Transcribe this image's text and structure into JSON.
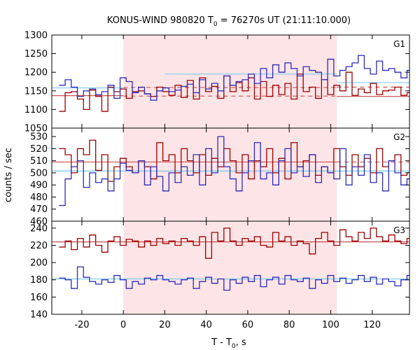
{
  "figure": {
    "title_main": "KONUS-WIND 980820 T",
    "title_sub": "0",
    "title_rest": " = 76270s UT (21:11:10.000)",
    "xlabel_main": "T - T",
    "xlabel_sub": "0",
    "xlabel_rest": ", s",
    "ylabel": "counts / sec"
  },
  "colors": {
    "red_series": "#9b0000",
    "blue_series": "#2b2bb8",
    "highlight": "#fde4e6",
    "red_fit": "#c04040",
    "blue_fit": "#69c2ee",
    "g1_blue_fit": "#7fc9f3",
    "axis": "#000000"
  },
  "chart_data": [
    {
      "type": "line",
      "panel": "G1",
      "step_width": 2.944,
      "xlim": [
        -34.5,
        138.0
      ],
      "ylim": [
        1050,
        1300
      ],
      "y_ticks": [
        1050,
        1100,
        1150,
        1200,
        1250,
        1300
      ],
      "x_ticks": [
        -20,
        0,
        20,
        40,
        60,
        80,
        100,
        120
      ],
      "highlight_interval": [
        0,
        103
      ],
      "series": [
        {
          "color_key": "red_series",
          "x_start": -31.0,
          "values": [
            1095,
            1145,
            1148,
            1128,
            1100,
            1152,
            1135,
            1095,
            1160,
            1148,
            1155,
            1130,
            1148,
            1150,
            1142,
            1135,
            1160,
            1148,
            1138,
            1165,
            1132,
            1178,
            1128,
            1185,
            1148,
            1162,
            1130,
            1190,
            1148,
            1172,
            1150,
            1185,
            1128,
            1175,
            1135,
            1165,
            1140,
            1170,
            1128,
            1195,
            1148,
            1160,
            1130,
            1180,
            1140,
            1165,
            1150,
            1200,
            1138,
            1155,
            1145,
            1170,
            1140,
            1150,
            1152,
            1160,
            1138,
            1145,
            1148,
            1130,
            1140,
            1135,
            1128,
            1138,
            1122,
            1130,
            1118,
            1125,
            1120,
            1128,
            1112,
            1118
          ]
        },
        {
          "color_key": "blue_series",
          "x_start": -31.0,
          "values": [
            1165,
            1180,
            1160,
            1135,
            1150,
            1155,
            1140,
            1148,
            1165,
            1130,
            1185,
            1175,
            1145,
            1160,
            1142,
            1125,
            1150,
            1158,
            1148,
            1152,
            1162,
            1168,
            1145,
            1180,
            1155,
            1170,
            1150,
            1190,
            1165,
            1175,
            1180,
            1195,
            1170,
            1210,
            1185,
            1220,
            1200,
            1225,
            1210,
            1190,
            1215,
            1205,
            1200,
            1180,
            1235,
            1190,
            1205,
            1215,
            1225,
            1245,
            1210,
            1195,
            1230,
            1205,
            1210,
            1200,
            1185,
            1205,
            1180,
            1190,
            1200,
            1175,
            1165,
            1180,
            1155,
            1170,
            1150,
            1180,
            1160,
            1165,
            1150,
            1165
          ]
        }
      ],
      "fit_lines": [
        {
          "color_key": "red_fit",
          "style": "solid",
          "x_range": [
            -34.5,
            0
          ],
          "y": 1137
        },
        {
          "color_key": "red_fit",
          "style": "dashed",
          "x_range": [
            0,
            103
          ],
          "y": 1136
        },
        {
          "color_key": "red_fit",
          "style": "solid",
          "x_range": [
            103,
            138
          ],
          "y": 1135
        },
        {
          "color_key": "red_fit",
          "style": "dashed",
          "x_range": [
            0,
            103
          ],
          "y": 1159
        },
        {
          "color_key": "red_fit",
          "style": "dashed",
          "x_range": [
            103,
            138
          ],
          "y": 1160
        },
        {
          "color_key": "g1_blue_fit",
          "style": "solid",
          "x_range": [
            -34.5,
            0
          ],
          "y": 1158
        },
        {
          "color_key": "g1_blue_fit",
          "style": "solid",
          "x_range": [
            20,
            103
          ],
          "y": 1195
        },
        {
          "color_key": "g1_blue_fit",
          "style": "solid",
          "x_range": [
            103,
            138
          ],
          "y": 1172
        }
      ]
    },
    {
      "type": "line",
      "panel": "G2",
      "step_width": 2.944,
      "xlim": [
        -34.5,
        138.0
      ],
      "ylim": [
        460,
        537
      ],
      "y_ticks": [
        460,
        470,
        480,
        490,
        500,
        510,
        520,
        530
      ],
      "x_ticks": [
        -20,
        0,
        20,
        40,
        60,
        80,
        100,
        120
      ],
      "highlight_interval": [
        0,
        103
      ],
      "series": [
        {
          "color_key": "red_series",
          "x_start": -31.0,
          "values": [
            520,
            515,
            500,
            520,
            515,
            527,
            502,
            515,
            493,
            505,
            512,
            505,
            500,
            510,
            505,
            495,
            525,
            510,
            515,
            500,
            520,
            510,
            500,
            515,
            498,
            512,
            505,
            520,
            510,
            500,
            515,
            495,
            510,
            505,
            520,
            500,
            512,
            495,
            525,
            505,
            510,
            515,
            498,
            505,
            500,
            520,
            505,
            498,
            515,
            505,
            512,
            500,
            520,
            505,
            510,
            515,
            498,
            500,
            520,
            503,
            515,
            478,
            485,
            508,
            503,
            510,
            528,
            508,
            505,
            500,
            510,
            495
          ]
        },
        {
          "color_key": "blue_series",
          "x_start": -31.0,
          "values": [
            473,
            495,
            505,
            510,
            488,
            500,
            492,
            495,
            485,
            495,
            508,
            502,
            500,
            510,
            490,
            505,
            497,
            485,
            500,
            492,
            505,
            498,
            515,
            490,
            520,
            500,
            530,
            505,
            495,
            485,
            500,
            510,
            525,
            495,
            500,
            490,
            510,
            520,
            500,
            505,
            497,
            515,
            492,
            505,
            500,
            495,
            520,
            490,
            505,
            498,
            515,
            492,
            500,
            485,
            510,
            500,
            490,
            495,
            505,
            510,
            500,
            485,
            505,
            493,
            480,
            500,
            490,
            485,
            488,
            482,
            495,
            480
          ]
        }
      ],
      "fit_lines": [
        {
          "color_key": "red_fit",
          "style": "solid",
          "x_range": [
            -34.5,
            103
          ],
          "y": 509
        },
        {
          "color_key": "red_fit",
          "style": "dashed",
          "x_range": [
            103,
            138
          ],
          "y": 509
        },
        {
          "color_key": "blue_fit",
          "style": "solid",
          "x_range": [
            -34.5,
            138
          ],
          "y": 501.5
        }
      ]
    },
    {
      "type": "line",
      "panel": "G3",
      "step_width": 2.944,
      "xlim": [
        -34.5,
        138.0
      ],
      "ylim": [
        140,
        248
      ],
      "y_ticks": [
        140,
        160,
        180,
        200,
        220,
        240
      ],
      "x_ticks": [
        -20,
        0,
        20,
        40,
        60,
        80,
        100,
        120
      ],
      "highlight_interval": [
        0,
        103
      ],
      "series": [
        {
          "color_key": "red_series",
          "x_start": -31.0,
          "values": [
            218,
            225,
            215,
            228,
            218,
            232,
            220,
            212,
            225,
            230,
            220,
            227,
            225,
            218,
            225,
            220,
            228,
            222,
            225,
            220,
            228,
            225,
            220,
            230,
            205,
            235,
            225,
            240,
            225,
            220,
            228,
            225,
            230,
            220,
            218,
            235,
            225,
            230,
            220,
            225,
            222,
            210,
            228,
            235,
            225,
            220,
            238,
            230,
            225,
            235,
            228,
            240,
            230,
            225,
            232,
            225,
            222,
            228,
            220,
            225,
            230,
            222,
            225,
            228,
            235,
            225,
            230,
            220,
            225,
            235,
            228,
            230
          ]
        },
        {
          "color_key": "blue_series",
          "x_start": -31.0,
          "values": [
            182,
            180,
            170,
            195,
            183,
            178,
            175,
            180,
            177,
            185,
            180,
            170,
            178,
            175,
            182,
            180,
            185,
            180,
            178,
            175,
            180,
            182,
            170,
            178,
            183,
            176,
            181,
            168,
            180,
            176,
            183,
            178,
            185,
            172,
            180,
            183,
            175,
            185,
            180,
            178,
            182,
            170,
            180,
            176,
            185,
            178,
            182,
            176,
            180,
            185,
            178,
            183,
            175,
            181,
            178,
            173,
            180,
            185,
            178,
            182,
            177,
            180,
            172,
            185,
            180,
            176,
            182,
            178,
            184,
            180,
            178,
            183
          ]
        }
      ],
      "fit_lines": [
        {
          "color_key": "red_fit",
          "style": "solid",
          "x_range": [
            -34.5,
            138
          ],
          "y": 224
        },
        {
          "color_key": "blue_fit",
          "style": "solid",
          "x_range": [
            -34.5,
            138
          ],
          "y": 181
        }
      ]
    }
  ]
}
